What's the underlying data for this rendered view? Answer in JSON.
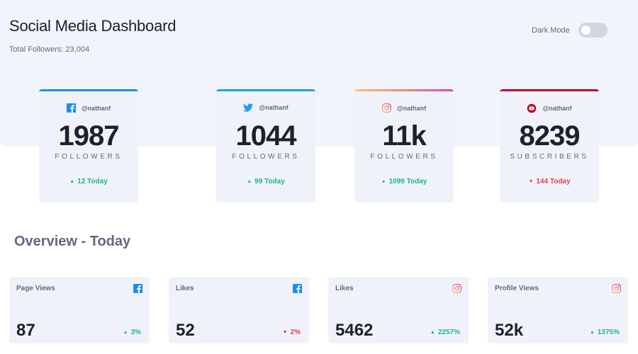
{
  "header": {
    "title": "Social Media Dashboard",
    "total_followers": "Total Followers: 23,004",
    "dark_mode_label": "Dark Mode"
  },
  "colors": {
    "facebook": "#198ff5",
    "twitter": "#1ca0f2",
    "instagram_start": "#fdc468",
    "instagram_end": "#df4996",
    "youtube": "#c4032a",
    "up": "#1eb589",
    "down": "#dc414c"
  },
  "cards": [
    {
      "platform": "facebook",
      "icon": "facebook-icon",
      "handle": "@nathanf",
      "count": "1987",
      "label": "FOLLOWERS",
      "change": "12 Today",
      "trend": "up"
    },
    {
      "platform": "twitter",
      "icon": "twitter-icon",
      "handle": "@nathanf",
      "count": "1044",
      "label": "FOLLOWERS",
      "change": "99 Today",
      "trend": "up"
    },
    {
      "platform": "instagram",
      "icon": "instagram-icon",
      "handle": "@nathanf",
      "count": "11k",
      "label": "FOLLOWERS",
      "change": "1099 Today",
      "trend": "up"
    },
    {
      "platform": "youtube",
      "icon": "youtube-icon",
      "handle": "@nathanf",
      "count": "8239",
      "label": "SUBSCRIBERS",
      "change": "144 Today",
      "trend": "down"
    }
  ],
  "overview": {
    "title": "Overview - Today",
    "items": [
      {
        "label": "Page Views",
        "icon": "facebook-icon",
        "value": "87",
        "change": "3%",
        "trend": "up"
      },
      {
        "label": "Likes",
        "icon": "facebook-icon",
        "value": "52",
        "change": "2%",
        "trend": "down"
      },
      {
        "label": "Likes",
        "icon": "instagram-icon",
        "value": "5462",
        "change": "2257%",
        "trend": "up"
      },
      {
        "label": "Profile Views",
        "icon": "instagram-icon",
        "value": "52k",
        "change": "1375%",
        "trend": "up"
      }
    ]
  }
}
